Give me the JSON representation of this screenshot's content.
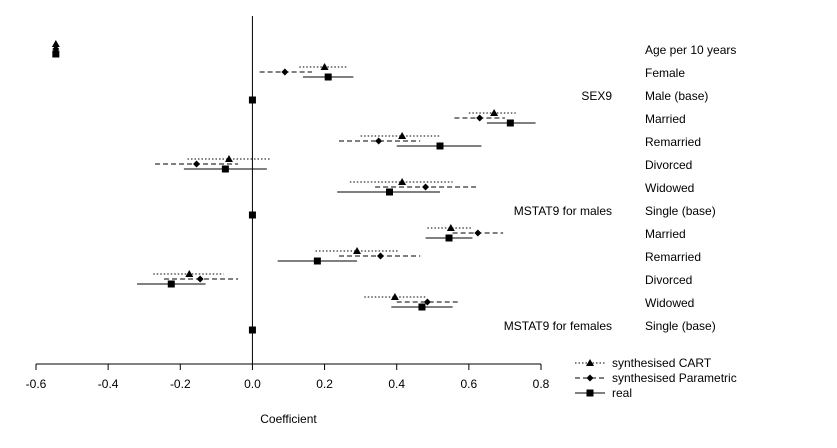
{
  "chart_data": {
    "type": "forest",
    "xlabel": "Coefficient",
    "xlim": [
      -0.6,
      0.8
    ],
    "xticks": [
      -0.6,
      -0.4,
      -0.2,
      0.0,
      0.2,
      0.4,
      0.6,
      0.8
    ],
    "xtick_labels": [
      "-0.6",
      "-0.4",
      "-0.2",
      "0.0",
      "0.2",
      "0.4",
      "0.6",
      "0.8"
    ],
    "reference_line": 0,
    "rows": [
      {
        "label": "Age per 10 years",
        "group": null
      },
      {
        "label": "Female",
        "group": null
      },
      {
        "label": "Male (base)",
        "group": "SEX9"
      },
      {
        "label": "Married",
        "group": null
      },
      {
        "label": "Remarried",
        "group": null
      },
      {
        "label": "Divorced",
        "group": null
      },
      {
        "label": "Widowed",
        "group": null
      },
      {
        "label": "Single (base)",
        "group": "MSTAT9 for males"
      },
      {
        "label": "Married",
        "group": null
      },
      {
        "label": "Remarried",
        "group": null
      },
      {
        "label": "Divorced",
        "group": null
      },
      {
        "label": "Widowed",
        "group": null
      },
      {
        "label": "Single (base)",
        "group": "MSTAT9 for females"
      }
    ],
    "series": [
      {
        "name": "synthesised CART",
        "marker": "triangle",
        "linestyle": "dotted",
        "points": [
          {
            "row": 0,
            "value": -0.545,
            "lo": -0.55,
            "hi": -0.54
          },
          {
            "row": 1,
            "value": 0.2,
            "lo": 0.13,
            "hi": 0.265
          },
          {
            "row": 3,
            "value": 0.67,
            "lo": 0.6,
            "hi": 0.73
          },
          {
            "row": 4,
            "value": 0.415,
            "lo": 0.3,
            "hi": 0.52
          },
          {
            "row": 5,
            "value": -0.065,
            "lo": -0.18,
            "hi": 0.05
          },
          {
            "row": 6,
            "value": 0.415,
            "lo": 0.27,
            "hi": 0.555
          },
          {
            "row": 8,
            "value": 0.55,
            "lo": 0.485,
            "hi": 0.61
          },
          {
            "row": 9,
            "value": 0.29,
            "lo": 0.175,
            "hi": 0.405
          },
          {
            "row": 10,
            "value": -0.175,
            "lo": -0.275,
            "hi": -0.08
          },
          {
            "row": 11,
            "value": 0.395,
            "lo": 0.31,
            "hi": 0.48
          }
        ]
      },
      {
        "name": "synthesised Parametric",
        "marker": "diamond",
        "linestyle": "dashed",
        "points": [
          {
            "row": 0,
            "value": -0.545,
            "lo": -0.55,
            "hi": -0.54
          },
          {
            "row": 1,
            "value": 0.09,
            "lo": 0.02,
            "hi": 0.165
          },
          {
            "row": 3,
            "value": 0.63,
            "lo": 0.56,
            "hi": 0.7
          },
          {
            "row": 4,
            "value": 0.35,
            "lo": 0.24,
            "hi": 0.465
          },
          {
            "row": 5,
            "value": -0.155,
            "lo": -0.27,
            "hi": -0.04
          },
          {
            "row": 6,
            "value": 0.48,
            "lo": 0.34,
            "hi": 0.625
          },
          {
            "row": 8,
            "value": 0.625,
            "lo": 0.555,
            "hi": 0.695
          },
          {
            "row": 9,
            "value": 0.355,
            "lo": 0.24,
            "hi": 0.465
          },
          {
            "row": 10,
            "value": -0.145,
            "lo": -0.245,
            "hi": -0.04
          },
          {
            "row": 11,
            "value": 0.485,
            "lo": 0.4,
            "hi": 0.57
          }
        ]
      },
      {
        "name": "real",
        "marker": "square",
        "linestyle": "solid",
        "points": [
          {
            "row": 0,
            "value": -0.545,
            "lo": -0.55,
            "hi": -0.54
          },
          {
            "row": 1,
            "value": 0.21,
            "lo": 0.14,
            "hi": 0.28
          },
          {
            "row": 2,
            "value": 0.0,
            "lo": 0.0,
            "hi": 0.0
          },
          {
            "row": 3,
            "value": 0.715,
            "lo": 0.65,
            "hi": 0.785
          },
          {
            "row": 4,
            "value": 0.52,
            "lo": 0.4,
            "hi": 0.635
          },
          {
            "row": 5,
            "value": -0.075,
            "lo": -0.19,
            "hi": 0.04
          },
          {
            "row": 6,
            "value": 0.38,
            "lo": 0.235,
            "hi": 0.52
          },
          {
            "row": 7,
            "value": 0.0,
            "lo": 0.0,
            "hi": 0.0
          },
          {
            "row": 8,
            "value": 0.545,
            "lo": 0.48,
            "hi": 0.61
          },
          {
            "row": 9,
            "value": 0.18,
            "lo": 0.07,
            "hi": 0.29
          },
          {
            "row": 10,
            "value": -0.225,
            "lo": -0.32,
            "hi": -0.13
          },
          {
            "row": 11,
            "value": 0.47,
            "lo": 0.385,
            "hi": 0.555
          },
          {
            "row": 12,
            "value": 0.0,
            "lo": 0.0,
            "hi": 0.0
          }
        ]
      }
    ],
    "legend": {
      "position": "bottom-right",
      "entries": [
        "synthesised CART",
        "synthesised Parametric",
        "real"
      ]
    }
  }
}
